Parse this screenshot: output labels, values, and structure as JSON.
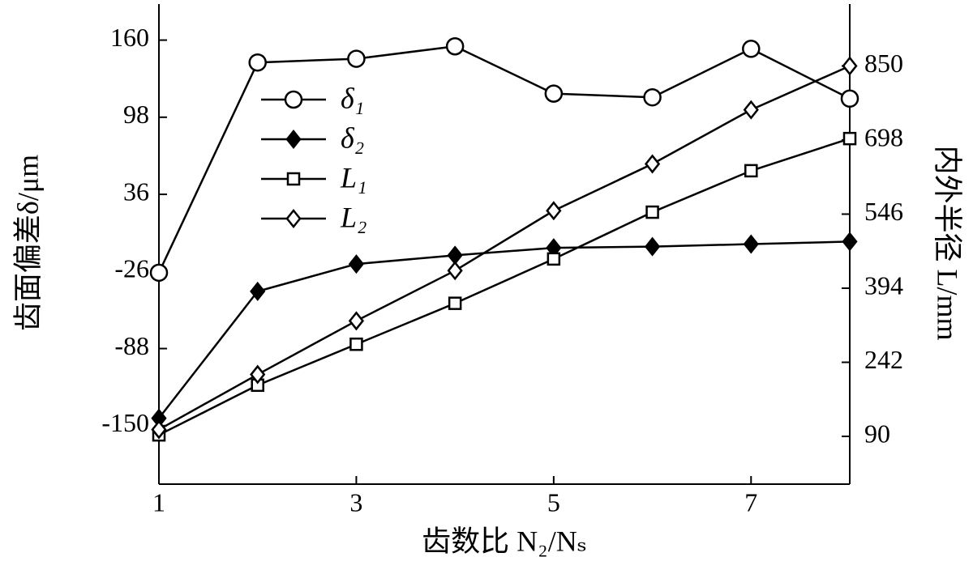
{
  "chart_data": {
    "type": "line",
    "x_label": "齿数比 N₂/Nₛ",
    "y_label": "齿面偏差δ/μm",
    "y2_label": "内外半径 L/mm",
    "xlim": [
      1,
      8
    ],
    "xticks": [
      1,
      3,
      5,
      7
    ],
    "ylim": [
      -197,
      189
    ],
    "yticks": [
      -150,
      -88,
      -26,
      36,
      98,
      160
    ],
    "y2lim": [
      -8,
      977
    ],
    "y2ticks": [
      90,
      242,
      394,
      546,
      698,
      850
    ],
    "x": [
      1,
      2,
      3,
      4,
      5,
      6,
      7,
      8
    ],
    "series": [
      {
        "name": "δ₁",
        "color": "#000000",
        "marker": "circle",
        "values": [
          -27,
          142,
          145,
          155,
          117,
          114,
          153,
          113
        ]
      },
      {
        "name": "δ₂",
        "color": "#000000",
        "marker": "filled-diamond",
        "values": [
          -144,
          -42,
          -20,
          -13,
          -7,
          -6,
          -4,
          -2
        ]
      },
      {
        "name": "L₁",
        "color": "#000000",
        "marker": "square",
        "axis": "y2",
        "values": [
          93,
          195,
          279,
          363,
          454,
          550,
          635,
          701
        ]
      },
      {
        "name": "L₂",
        "color": "#000000",
        "marker": "diamond",
        "axis": "y2",
        "values": [
          104,
          217,
          327,
          430,
          553,
          649,
          760,
          850
        ]
      }
    ]
  }
}
